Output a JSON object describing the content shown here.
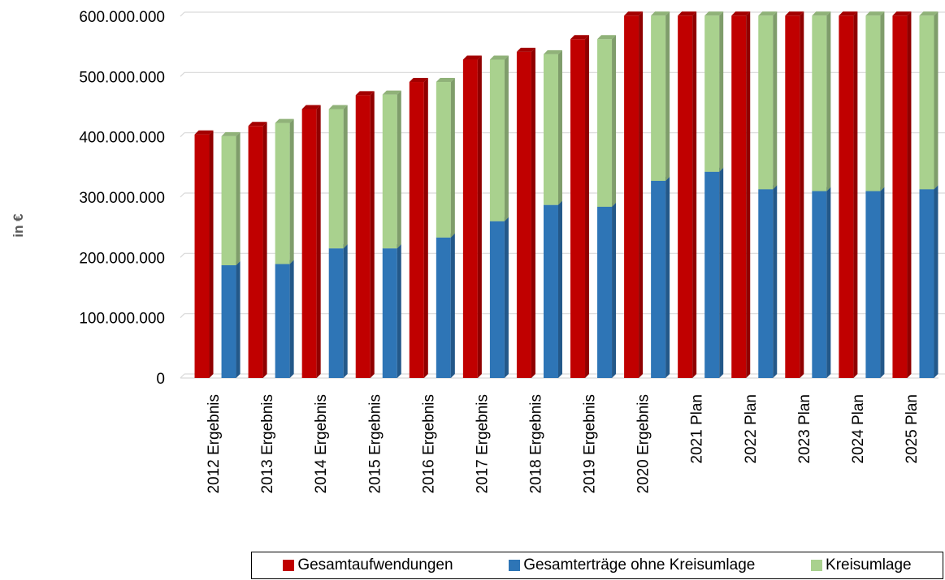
{
  "chart_data": {
    "type": "bar",
    "ylabel": "in €",
    "ylim": [
      0,
      600000000
    ],
    "yticks": [
      "0",
      "100.000.000",
      "200.000.000",
      "300.000.000",
      "400.000.000",
      "500.000.000",
      "600.000.000"
    ],
    "categories": [
      "2012 Ergebnis",
      "2013 Ergebnis",
      "2014 Ergebnis",
      "2015 Ergebnis",
      "2016 Ergebnis",
      "2017 Ergebnis",
      "2018 Ergebnis",
      "2019 Ergebnis",
      "2020 Ergebnis",
      "2021 Plan",
      "2022 Plan",
      "2023 Plan",
      "2024 Plan",
      "2025 Plan"
    ],
    "grid": true,
    "legend_position": "bottom-right",
    "series": [
      {
        "name": "Gesamtaufwendungen",
        "color": "#C00000",
        "stack": "a",
        "values": [
          404000000,
          418000000,
          446000000,
          469000000,
          491000000,
          528000000,
          541000000,
          562000000,
          601000000,
          601000000,
          601000000,
          601000000,
          601000000,
          601000000
        ]
      },
      {
        "name": "Gesamterträge ohne Kreisumlage",
        "color": "#2E75B6",
        "stack": "b",
        "values": [
          187000000,
          189000000,
          215000000,
          215000000,
          233000000,
          260000000,
          287000000,
          284000000,
          327000000,
          342000000,
          313000000,
          310000000,
          310000000,
          313000000
        ]
      },
      {
        "name": "Kreisumlage",
        "color": "#A9D18E",
        "stack": "b",
        "values": [
          214000000,
          234000000,
          231000000,
          255000000,
          258000000,
          268000000,
          250000000,
          278000000,
          274000000,
          259000000,
          288000000,
          291000000,
          291000000,
          288000000
        ]
      }
    ]
  }
}
